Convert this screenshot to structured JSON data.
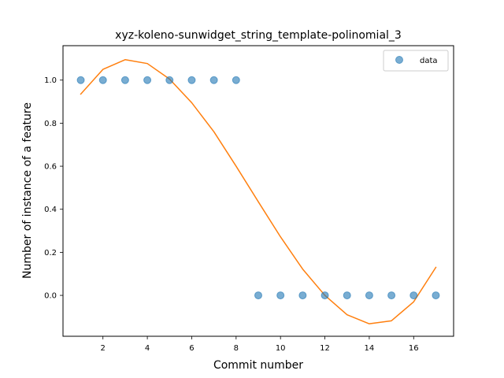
{
  "chart_data": {
    "type": "scatter",
    "title": "xyz-koleno-sunwidget_string_template-polinomial_3",
    "xlabel": "Commit number",
    "ylabel": "Number of instance of a feature",
    "xlim": [
      0.2,
      17.8
    ],
    "ylim": [
      -0.19,
      1.16
    ],
    "xticks": [
      2,
      4,
      6,
      8,
      10,
      12,
      14,
      16
    ],
    "yticks": [
      0.0,
      0.2,
      0.4,
      0.6,
      0.8,
      1.0
    ],
    "grid": false,
    "legend_position": "top-right",
    "series": [
      {
        "name": "data",
        "kind": "scatter",
        "color": "#1f77b4",
        "x": [
          1,
          2,
          3,
          4,
          5,
          6,
          7,
          8,
          9,
          10,
          11,
          12,
          13,
          14,
          15,
          16,
          17
        ],
        "y": [
          1,
          1,
          1,
          1,
          1,
          1,
          1,
          1,
          0,
          0,
          0,
          0,
          0,
          0,
          0,
          0,
          0
        ]
      },
      {
        "kind": "line",
        "color": "#ff7f0e",
        "x": [
          1,
          2,
          3,
          4,
          5,
          6,
          7,
          8,
          9,
          10,
          11,
          12,
          13,
          14,
          15,
          16,
          17
        ],
        "y": [
          0.935,
          1.05,
          1.095,
          1.077,
          1.005,
          0.895,
          0.76,
          0.6,
          0.435,
          0.272,
          0.122,
          0.0,
          -0.09,
          -0.132,
          -0.118,
          -0.03,
          0.13
        ]
      }
    ]
  }
}
